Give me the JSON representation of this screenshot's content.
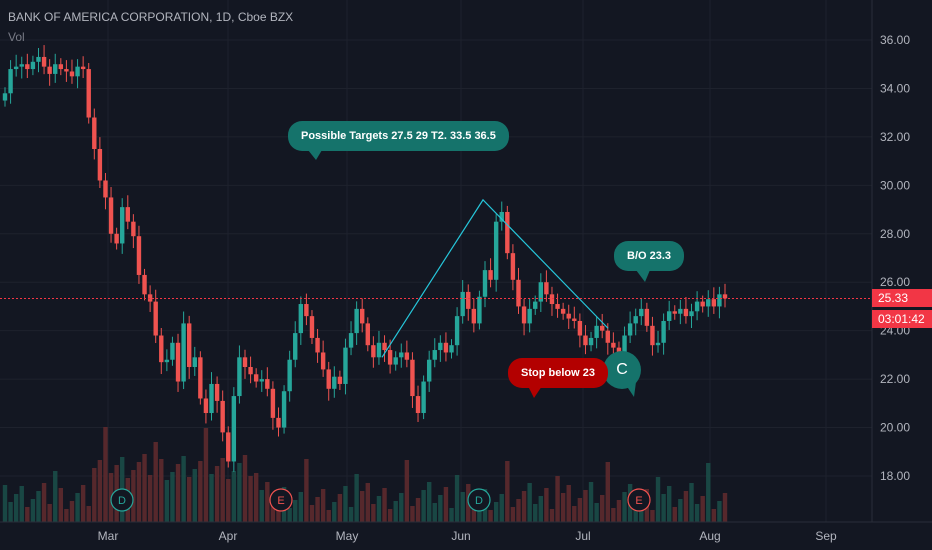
{
  "header": {
    "title": "BANK OF AMERICA CORPORATION, 1D, Cboe BZX",
    "volume_label": "Vol"
  },
  "colors": {
    "background": "#131722",
    "up": "#26a69a",
    "down": "#ef5350",
    "trendline": "#26c6da",
    "price_line": "#f23645",
    "bubble_teal": "#15736b",
    "bubble_red": "#b30000"
  },
  "annotations": {
    "targets": "Possible Targets   27.5  29    T2.  33.5  36.5",
    "breakout": "B/O 23.3",
    "stop": "Stop below 23",
    "point_c": "C"
  },
  "price_axis": {
    "current_price": "25.33",
    "countdown": "03:01:42"
  },
  "event_markers": [
    {
      "label": "D",
      "date": "Mar"
    },
    {
      "label": "E",
      "date": "Apr"
    },
    {
      "label": "D",
      "date": "Jun"
    },
    {
      "label": "E",
      "date": "Jul"
    }
  ],
  "chart_data": {
    "type": "candlestick",
    "title": "BANK OF AMERICA CORPORATION, 1D, Cboe BZX",
    "y_ticks": [
      "18.00",
      "20.00",
      "22.00",
      "24.00",
      "26.00",
      "28.00",
      "30.00",
      "32.00",
      "34.00",
      "36.00"
    ],
    "x_ticks": [
      "Mar",
      "Apr",
      "May",
      "Jun",
      "Jul",
      "Aug",
      "Sep"
    ],
    "ylim": [
      16.7,
      37.5
    ],
    "grid": true,
    "last_price": 25.33,
    "trendline_points": [
      [
        22.9
      ],
      [
        29.4
      ],
      [
        24.1
      ]
    ],
    "closes": [
      33.8,
      34.8,
      34.9,
      35.0,
      34.8,
      35.1,
      35.3,
      34.9,
      34.6,
      35.0,
      34.8,
      34.7,
      34.5,
      34.9,
      34.8,
      32.8,
      31.5,
      30.2,
      29.5,
      28.0,
      27.6,
      29.1,
      28.5,
      27.9,
      26.3,
      25.5,
      25.2,
      23.8,
      22.7,
      22.8,
      23.5,
      21.9,
      24.3,
      22.5,
      22.9,
      21.2,
      20.6,
      21.8,
      21.1,
      19.8,
      18.6,
      21.3,
      22.9,
      22.5,
      22.2,
      21.9,
      22.0,
      21.6,
      20.4,
      20.0,
      21.5,
      22.8,
      23.9,
      25.1,
      24.6,
      23.7,
      23.1,
      22.4,
      21.6,
      22.1,
      21.8,
      23.3,
      23.9,
      24.9,
      24.3,
      23.4,
      22.9,
      23.5,
      23.2,
      22.6,
      22.9,
      23.1,
      22.8,
      21.3,
      20.6,
      21.9,
      22.8,
      23.2,
      23.5,
      23.1,
      23.4,
      24.6,
      25.6,
      24.9,
      24.3,
      25.4,
      26.5,
      26.1,
      28.5,
      28.9,
      27.2,
      26.1,
      25.0,
      24.3,
      24.9,
      25.2,
      26.0,
      25.5,
      25.1,
      24.9,
      24.7,
      24.5,
      24.4,
      23.8,
      23.4,
      23.7,
      24.2,
      24.0,
      23.5,
      23.3,
      23.1,
      23.8,
      24.3,
      24.6,
      24.9,
      24.2,
      23.4,
      23.5,
      24.4,
      24.8,
      24.7,
      24.9,
      24.6,
      24.8,
      25.2,
      25.0,
      25.3,
      25.0,
      25.5,
      25.33
    ],
    "volume_note": "volume histogram at bottom of pane"
  }
}
